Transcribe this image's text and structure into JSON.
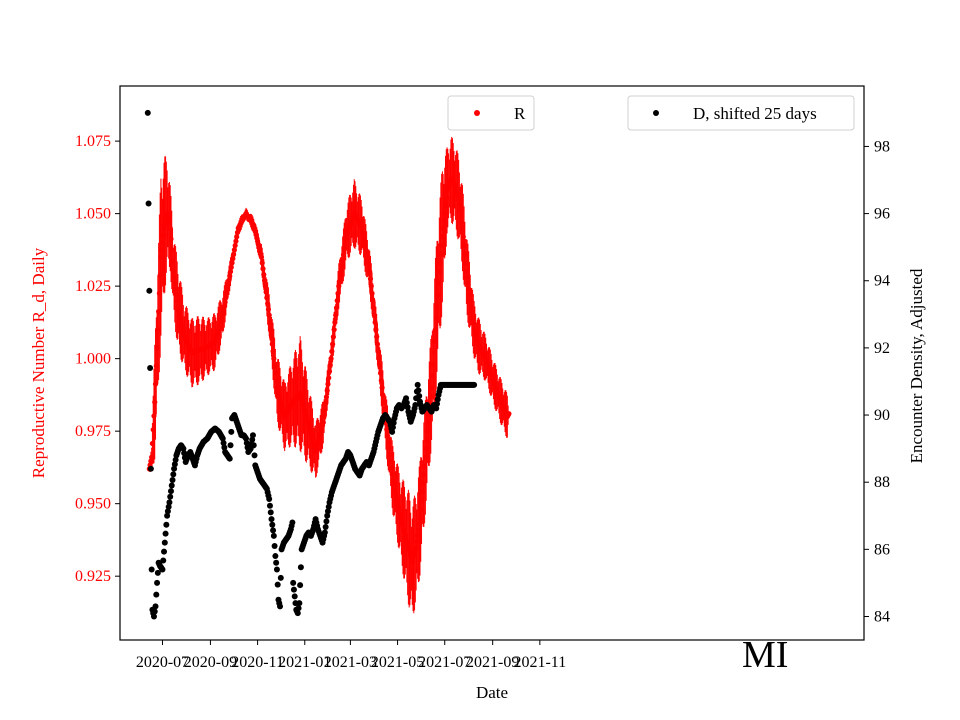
{
  "chart_data": {
    "type": "scatter",
    "xlabel": "Date",
    "ylabel_left": "Reproductive Number R_d, Daily",
    "ylabel_right": "Encounter Density, Adjusted",
    "annotation": "MI",
    "x_ticks": [
      "2020-07",
      "2020-09",
      "2020-11",
      "2021-01",
      "2021-03",
      "2021-05",
      "2021-07",
      "2021-09",
      "2021-11"
    ],
    "x_range_days": [
      0,
      515
    ],
    "y_left": {
      "lim": [
        0.903,
        1.094
      ],
      "ticks": [
        "0.925",
        "0.950",
        "0.975",
        "1.000",
        "1.025",
        "1.050",
        "1.075"
      ]
    },
    "y_right": {
      "lim": [
        83.3,
        99.8
      ],
      "ticks": [
        "84",
        "86",
        "88",
        "90",
        "92",
        "94",
        "96",
        "98"
      ]
    },
    "colors": {
      "R": "#ff0000",
      "D": "#000000",
      "left_axis_text": "#ff0000"
    },
    "legend": [
      {
        "label": "R",
        "color": "#ff0000",
        "placement": "top-center"
      },
      {
        "label": "D, shifted 25 days",
        "color": "#000000",
        "placement": "top-right"
      }
    ],
    "series": [
      {
        "name": "R",
        "axis": "left",
        "error_bars": true,
        "points": [
          [
            25,
            0.962,
            0.001
          ],
          [
            28,
            0.966,
            0.006
          ],
          [
            32,
            0.985,
            0.02
          ],
          [
            36,
            1.01,
            0.025
          ],
          [
            40,
            1.035,
            0.03
          ],
          [
            44,
            1.045,
            0.025
          ],
          [
            48,
            1.05,
            0.02
          ],
          [
            52,
            1.045,
            0.015
          ],
          [
            56,
            1.03,
            0.015
          ],
          [
            62,
            1.018,
            0.015
          ],
          [
            70,
            1.008,
            0.012
          ],
          [
            80,
            1.002,
            0.012
          ],
          [
            90,
            1.003,
            0.012
          ],
          [
            100,
            1.004,
            0.01
          ],
          [
            110,
            1.006,
            0.01
          ],
          [
            120,
            1.015,
            0.008
          ],
          [
            130,
            1.03,
            0.005
          ],
          [
            140,
            1.045,
            0.003
          ],
          [
            150,
            1.05,
            0.002
          ],
          [
            160,
            1.046,
            0.003
          ],
          [
            170,
            1.035,
            0.005
          ],
          [
            180,
            1.015,
            0.008
          ],
          [
            190,
            0.99,
            0.012
          ],
          [
            200,
            0.98,
            0.012
          ],
          [
            210,
            0.985,
            0.015
          ],
          [
            220,
            0.988,
            0.02
          ],
          [
            230,
            0.978,
            0.015
          ],
          [
            240,
            0.968,
            0.01
          ],
          [
            250,
            0.978,
            0.008
          ],
          [
            260,
            1.0,
            0.006
          ],
          [
            270,
            1.025,
            0.008
          ],
          [
            280,
            1.043,
            0.01
          ],
          [
            290,
            1.05,
            0.012
          ],
          [
            300,
            1.045,
            0.01
          ],
          [
            310,
            1.03,
            0.008
          ],
          [
            320,
            1.005,
            0.008
          ],
          [
            330,
            0.98,
            0.01
          ],
          [
            340,
            0.958,
            0.012
          ],
          [
            350,
            0.945,
            0.015
          ],
          [
            360,
            0.935,
            0.02
          ],
          [
            365,
            0.93,
            0.02
          ],
          [
            370,
            0.935,
            0.02
          ],
          [
            375,
            0.945,
            0.02
          ],
          [
            380,
            0.96,
            0.02
          ],
          [
            385,
            0.975,
            0.02
          ],
          [
            390,
            0.99,
            0.02
          ],
          [
            395,
            1.01,
            0.025
          ],
          [
            400,
            1.03,
            0.025
          ],
          [
            405,
            1.045,
            0.025
          ],
          [
            410,
            1.058,
            0.015
          ],
          [
            415,
            1.062,
            0.015
          ],
          [
            420,
            1.06,
            0.015
          ],
          [
            425,
            1.055,
            0.015
          ],
          [
            430,
            1.045,
            0.015
          ],
          [
            435,
            1.03,
            0.015
          ],
          [
            440,
            1.02,
            0.012
          ],
          [
            445,
            1.01,
            0.01
          ],
          [
            450,
            1.005,
            0.01
          ],
          [
            460,
            1.0,
            0.008
          ],
          [
            470,
            0.992,
            0.008
          ],
          [
            480,
            0.985,
            0.008
          ],
          [
            488,
            0.98,
            0.008
          ],
          [
            490,
            0.981,
            0.001
          ]
        ]
      },
      {
        "name": "D, shifted 25 days",
        "axis": "right",
        "points": [
          [
            23,
            99.0
          ],
          [
            24,
            96.3
          ],
          [
            25,
            93.7
          ],
          [
            26,
            91.4
          ],
          [
            27,
            88.4
          ],
          [
            28,
            85.4
          ],
          [
            29,
            84.2
          ],
          [
            31,
            84.0
          ],
          [
            33,
            84.3
          ],
          [
            35,
            85.0
          ],
          [
            37,
            85.6
          ],
          [
            39,
            85.5
          ],
          [
            42,
            85.4
          ],
          [
            45,
            86.2
          ],
          [
            48,
            87.0
          ],
          [
            51,
            87.4
          ],
          [
            54,
            87.9
          ],
          [
            57,
            88.4
          ],
          [
            60,
            88.8
          ],
          [
            63,
            89.0
          ],
          [
            66,
            89.1
          ],
          [
            69,
            89.0
          ],
          [
            72,
            88.6
          ],
          [
            75,
            88.8
          ],
          [
            78,
            88.9
          ],
          [
            81,
            88.7
          ],
          [
            84,
            88.5
          ],
          [
            87,
            88.8
          ],
          [
            90,
            89.0
          ],
          [
            95,
            89.2
          ],
          [
            100,
            89.3
          ],
          [
            105,
            89.5
          ],
          [
            110,
            89.6
          ],
          [
            115,
            89.5
          ],
          [
            120,
            89.3
          ],
          [
            123,
            88.9
          ],
          [
            126,
            88.8
          ],
          [
            129,
            88.7
          ],
          [
            132,
            89.9
          ],
          [
            135,
            90.0
          ],
          [
            138,
            89.8
          ],
          [
            141,
            89.6
          ],
          [
            144,
            89.4
          ],
          [
            147,
            89.4
          ],
          [
            150,
            89.3
          ],
          [
            153,
            88.9
          ],
          [
            156,
            89.0
          ],
          [
            159,
            89.4
          ],
          [
            162,
            88.5
          ],
          [
            165,
            88.3
          ],
          [
            168,
            88.1
          ],
          [
            171,
            88.0
          ],
          [
            174,
            87.9
          ],
          [
            177,
            87.8
          ],
          [
            180,
            87.5
          ],
          [
            183,
            86.9
          ],
          [
            186,
            86.4
          ],
          [
            188,
            85.8
          ],
          [
            190,
            85.4
          ],
          [
            192,
            84.5
          ],
          [
            194,
            84.3
          ],
          [
            196,
            86.0
          ],
          [
            199,
            86.2
          ],
          [
            202,
            86.3
          ],
          [
            205,
            86.4
          ],
          [
            208,
            86.6
          ],
          [
            210,
            86.8
          ],
          [
            211,
            85.0
          ],
          [
            213,
            84.6
          ],
          [
            215,
            84.2
          ],
          [
            217,
            84.1
          ],
          [
            219,
            84.4
          ],
          [
            222,
            86.0
          ],
          [
            225,
            86.2
          ],
          [
            228,
            86.4
          ],
          [
            231,
            86.5
          ],
          [
            234,
            86.4
          ],
          [
            237,
            86.6
          ],
          [
            240,
            86.9
          ],
          [
            243,
            86.6
          ],
          [
            246,
            86.4
          ],
          [
            249,
            86.2
          ],
          [
            252,
            86.5
          ],
          [
            255,
            87.0
          ],
          [
            258,
            87.4
          ],
          [
            261,
            87.7
          ],
          [
            264,
            87.9
          ],
          [
            267,
            88.1
          ],
          [
            270,
            88.3
          ],
          [
            273,
            88.5
          ],
          [
            276,
            88.6
          ],
          [
            279,
            88.7
          ],
          [
            282,
            88.9
          ],
          [
            285,
            88.8
          ],
          [
            288,
            88.6
          ],
          [
            291,
            88.4
          ],
          [
            294,
            88.3
          ],
          [
            297,
            88.2
          ],
          [
            300,
            88.4
          ],
          [
            303,
            88.5
          ],
          [
            306,
            88.6
          ],
          [
            309,
            88.5
          ],
          [
            312,
            88.7
          ],
          [
            315,
            88.9
          ],
          [
            318,
            89.2
          ],
          [
            321,
            89.5
          ],
          [
            324,
            89.7
          ],
          [
            327,
            89.9
          ],
          [
            330,
            90.0
          ],
          [
            333,
            89.9
          ],
          [
            336,
            89.8
          ],
          [
            339,
            89.5
          ],
          [
            342,
            89.9
          ],
          [
            345,
            90.2
          ],
          [
            348,
            90.3
          ],
          [
            351,
            90.2
          ],
          [
            354,
            90.3
          ],
          [
            357,
            90.5
          ],
          [
            360,
            90.1
          ],
          [
            363,
            89.8
          ],
          [
            366,
            90.0
          ],
          [
            369,
            90.3
          ],
          [
            372,
            90.9
          ],
          [
            375,
            90.4
          ],
          [
            378,
            90.1
          ],
          [
            381,
            90.2
          ],
          [
            384,
            90.3
          ],
          [
            387,
            90.2
          ],
          [
            390,
            90.1
          ],
          [
            393,
            90.3
          ],
          [
            396,
            90.2
          ],
          [
            399,
            90.6
          ],
          [
            402,
            90.9
          ],
          [
            405,
            90.9
          ],
          [
            410,
            90.9
          ],
          [
            415,
            90.9
          ],
          [
            420,
            90.9
          ],
          [
            425,
            90.9
          ],
          [
            430,
            90.9
          ],
          [
            435,
            90.9
          ],
          [
            440,
            90.9
          ],
          [
            445,
            90.9
          ]
        ]
      }
    ]
  }
}
